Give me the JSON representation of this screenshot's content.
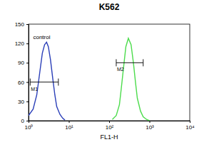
{
  "chart_data": {
    "type": "line",
    "title": "K562",
    "x_label": "FL1-H",
    "log": "x",
    "xlim": [
      1,
      10000
    ],
    "xticks": [
      {
        "value": 1,
        "label": "10⁰"
      },
      {
        "value": 10,
        "label": "10¹"
      },
      {
        "value": 100,
        "label": "10²"
      },
      {
        "value": 1000,
        "label": "10³"
      },
      {
        "value": 10000,
        "label": "10⁴"
      }
    ],
    "ylim": [
      0,
      150
    ],
    "yticks": [
      0,
      30,
      60,
      90,
      120,
      150
    ],
    "series": [
      {
        "color": "#2b3fb8",
        "x": [
          1,
          1.3,
          1.6,
          1.9,
          2.2,
          2.5,
          2.8,
          3.1,
          3.5,
          4,
          4.5,
          5,
          6,
          7,
          8
        ],
        "values": [
          8,
          18,
          40,
          75,
          105,
          118,
          122,
          115,
          95,
          65,
          40,
          22,
          10,
          4,
          1
        ]
      },
      {
        "color": "#4ddc4d",
        "x": [
          120,
          150,
          180,
          200,
          230,
          260,
          300,
          350,
          400,
          450,
          500,
          600,
          700,
          850,
          1000
        ],
        "values": [
          2,
          8,
          25,
          50,
          85,
          115,
          128,
          118,
          90,
          60,
          35,
          15,
          6,
          2,
          0
        ]
      }
    ],
    "annotations": [
      {
        "text": "control",
        "x": 1.3,
        "y": 127
      }
    ],
    "gates": [
      {
        "label": "M1",
        "range": [
          1.1,
          5.5
        ],
        "y": 60
      },
      {
        "label": "M2",
        "range": [
          150,
          700
        ],
        "y": 90
      }
    ]
  }
}
